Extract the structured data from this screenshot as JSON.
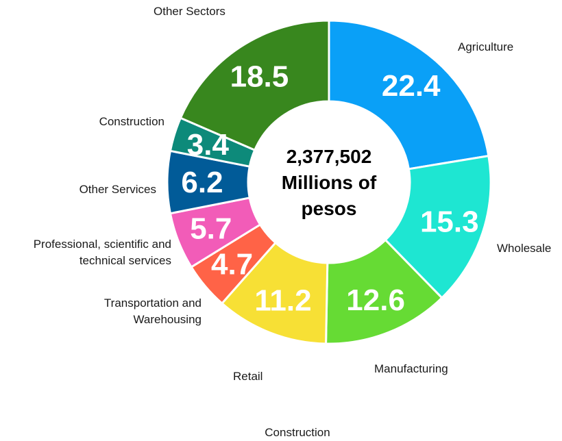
{
  "chart_data": {
    "type": "pie",
    "variant": "donut",
    "center_text": [
      "2,377,502",
      "Millions of",
      "pesos"
    ],
    "slices": [
      {
        "label": "Agriculture",
        "value": 22.4,
        "value_label": "22.4",
        "color": "#0aa0f7"
      },
      {
        "label": "Wholesale",
        "value": 15.3,
        "value_label": "15.3",
        "color": "#1ee6d2"
      },
      {
        "label": "Manufacturing",
        "value": 12.6,
        "value_label": "12.6",
        "color": "#66db34"
      },
      {
        "label": "Retail",
        "value": 11.2,
        "value_label": "11.2",
        "color": "#f7e035"
      },
      {
        "label": [
          "Transportation and",
          "Warehousing"
        ],
        "value": 4.7,
        "value_label": "4.7",
        "color": "#ff6347"
      },
      {
        "label": [
          "Professional, scientific and",
          "technical services"
        ],
        "value": 5.7,
        "value_label": "5.7",
        "color": "#f25cb8"
      },
      {
        "label": "Other Services",
        "value": 6.2,
        "value_label": "6.2",
        "color": "#015b98"
      },
      {
        "label": "Construction",
        "value": 3.4,
        "value_label": "3.4",
        "color": "#0d8a7a"
      },
      {
        "label": "Other Sectors",
        "value": 18.5,
        "value_label": "18.5",
        "color": "#38871e"
      }
    ],
    "extra_labels": [
      "Construction"
    ]
  }
}
